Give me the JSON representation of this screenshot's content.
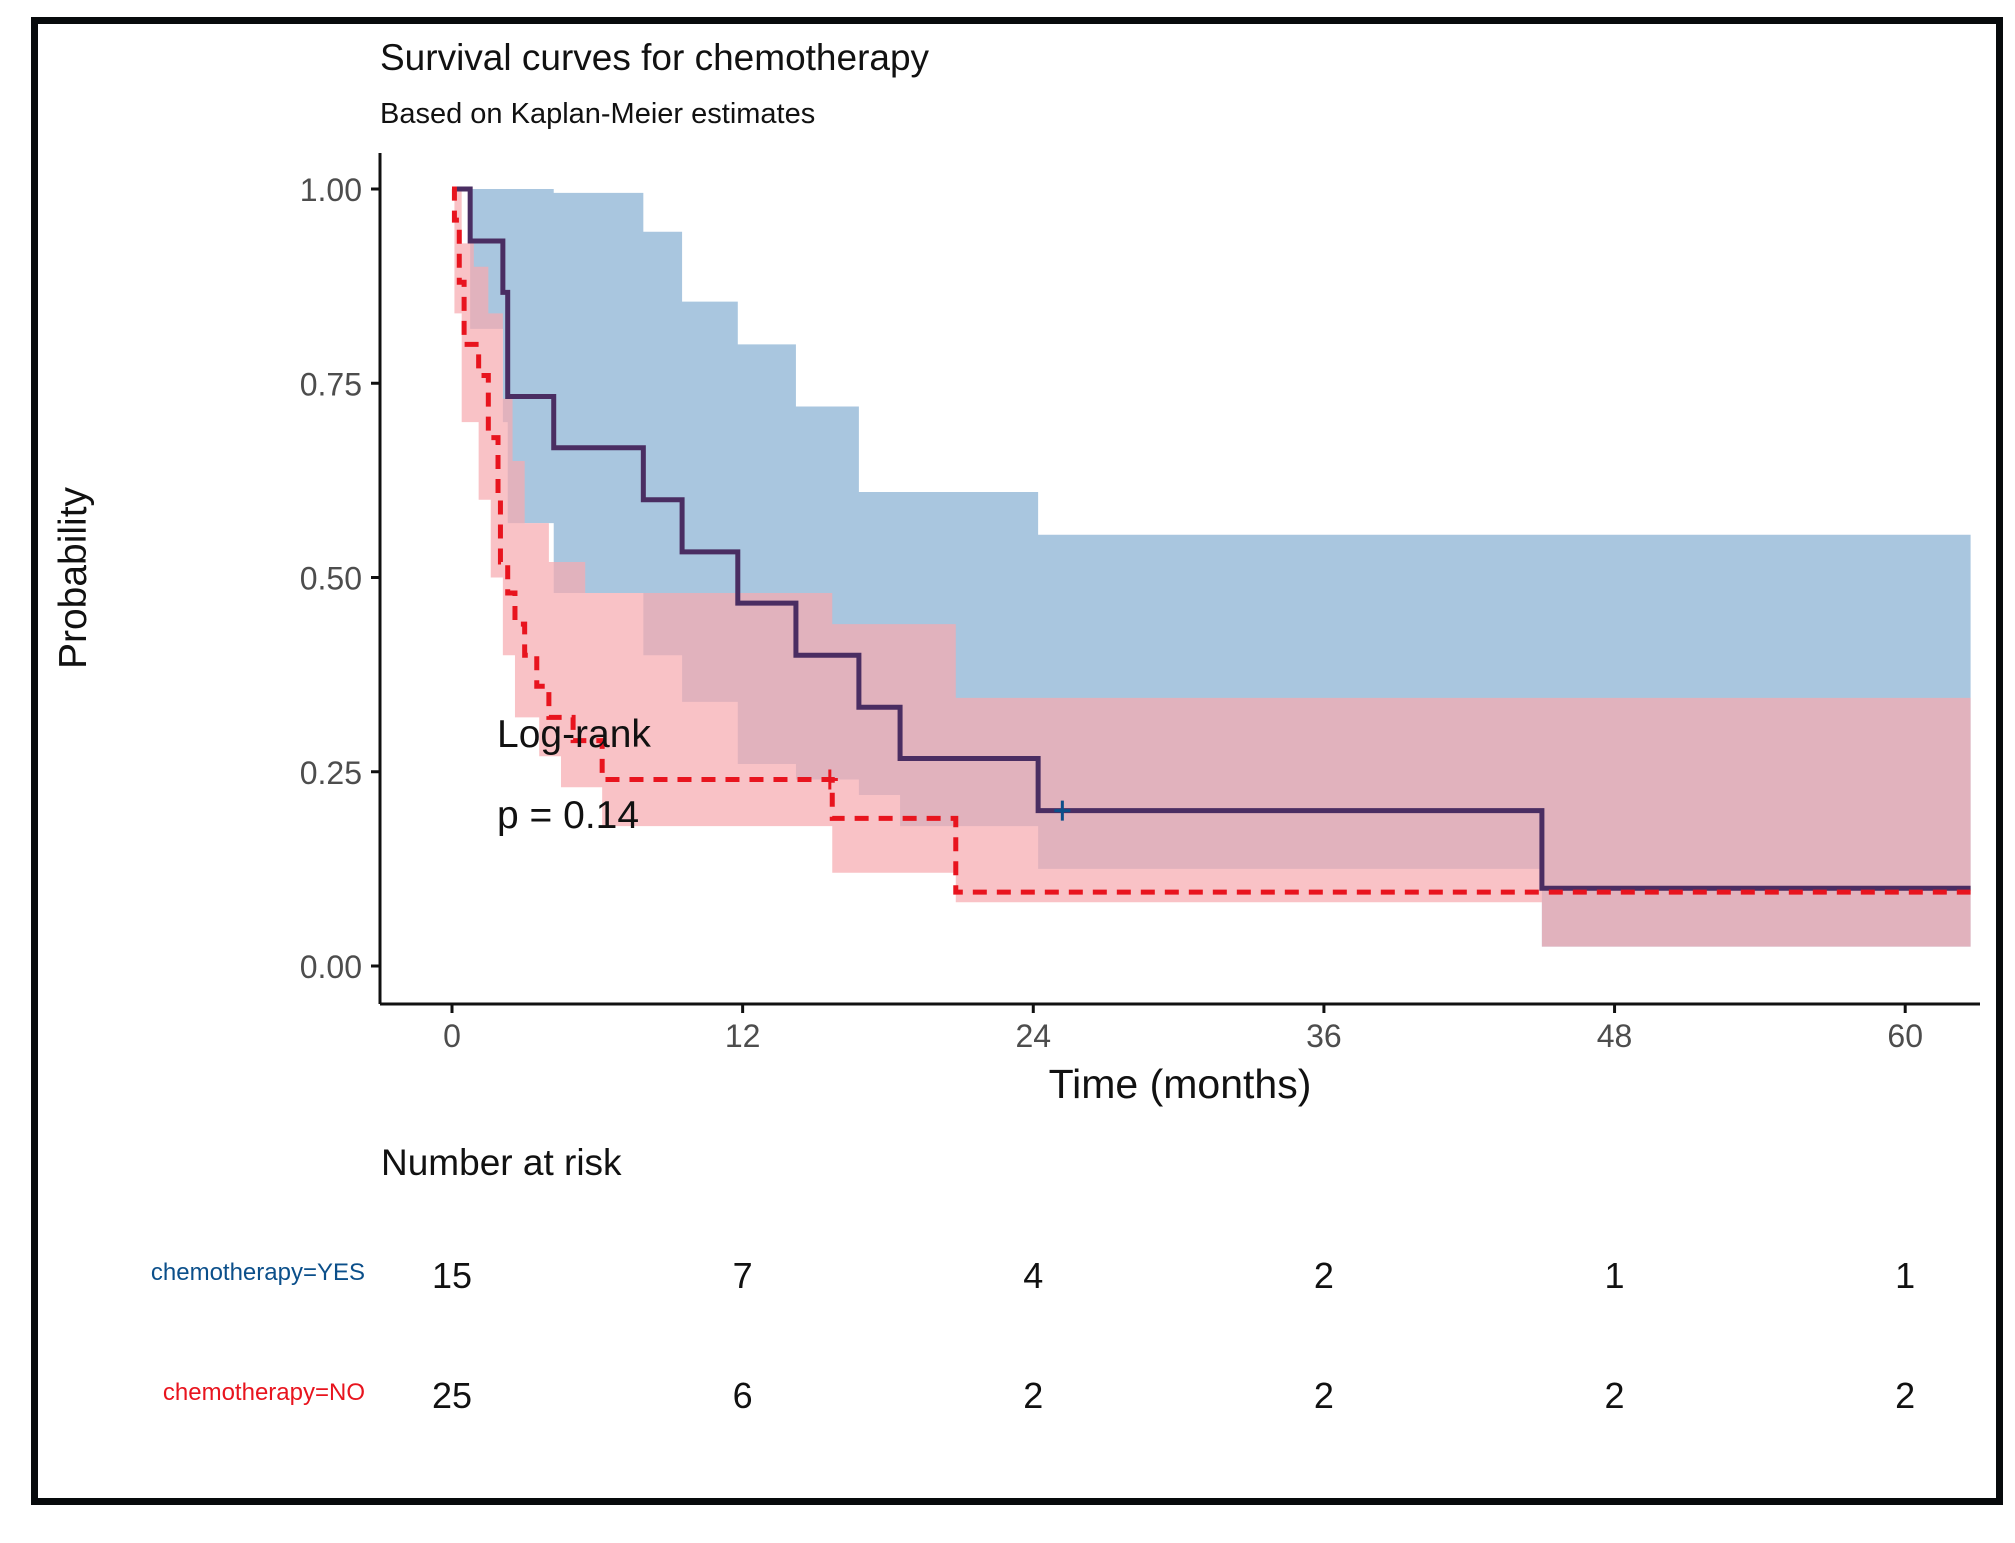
{
  "chart_data": {
    "type": "line",
    "subtype": "kaplan-meier",
    "title": "Survival curves for chemotherapy",
    "subtitle": "Based on Kaplan-Meier estimates",
    "xlabel": "Time (months)",
    "ylabel": "Probability",
    "xlim": [
      -4,
      63
    ],
    "ylim": [
      -0.05,
      1.05
    ],
    "x_ticks": [
      0,
      12,
      24,
      36,
      48,
      60
    ],
    "x_tick_labels": [
      "0",
      "12",
      "24",
      "36",
      "48",
      "60"
    ],
    "y_ticks": [
      0,
      0.25,
      0.5,
      0.75,
      1.0
    ],
    "y_tick_labels": [
      "0.00",
      "0.25",
      "0.50",
      "0.75",
      "1.00"
    ],
    "grid": false,
    "annotation": {
      "line1": "Log-rank",
      "line2": "p = 0.14"
    },
    "series": [
      {
        "name": "chemotherapy=YES",
        "color": "#0b4f8a",
        "ci_color": "#a9c6df",
        "linestyle": "solid",
        "steps": [
          [
            0,
            1.0
          ],
          [
            0.75,
            0.933
          ],
          [
            2.1,
            0.867
          ],
          [
            2.3,
            0.733
          ],
          [
            4.2,
            0.667
          ],
          [
            7.9,
            0.6
          ],
          [
            9.5,
            0.533
          ],
          [
            11.8,
            0.467
          ],
          [
            14.2,
            0.4
          ],
          [
            16.8,
            0.333
          ],
          [
            18.5,
            0.267
          ],
          [
            24.2,
            0.2
          ],
          [
            45.0,
            0.1
          ],
          [
            62.7,
            0.1
          ]
        ],
        "ci_upper": [
          [
            0,
            1.0
          ],
          [
            1.2,
            1.0
          ],
          [
            4.2,
            0.995
          ],
          [
            7.9,
            0.945
          ],
          [
            9.5,
            0.855
          ],
          [
            11.8,
            0.8
          ],
          [
            14.2,
            0.72
          ],
          [
            16.8,
            0.61
          ],
          [
            18.5,
            0.61
          ],
          [
            24.2,
            0.555
          ],
          [
            45.0,
            0.555
          ],
          [
            62.7,
            0.555
          ]
        ],
        "ci_lower": [
          [
            0,
            1.0
          ],
          [
            0.75,
            0.82
          ],
          [
            2.1,
            0.7
          ],
          [
            2.3,
            0.57
          ],
          [
            4.2,
            0.48
          ],
          [
            7.9,
            0.4
          ],
          [
            9.5,
            0.34
          ],
          [
            11.8,
            0.26
          ],
          [
            14.2,
            0.24
          ],
          [
            16.8,
            0.22
          ],
          [
            18.5,
            0.18
          ],
          [
            24.2,
            0.125
          ],
          [
            45.0,
            0.025
          ],
          [
            62.7,
            0.025
          ]
        ],
        "censor_points": [
          [
            25.2,
            0.2
          ]
        ],
        "at_risk": [
          15,
          7,
          4,
          2,
          1,
          1
        ]
      },
      {
        "name": "chemotherapy=NO",
        "color": "#e8141e",
        "ci_color": "#f7aab0",
        "linestyle": "dashed",
        "steps": [
          [
            0,
            1.0
          ],
          [
            0.1,
            0.96
          ],
          [
            0.3,
            0.88
          ],
          [
            0.5,
            0.8
          ],
          [
            1.1,
            0.76
          ],
          [
            1.5,
            0.68
          ],
          [
            1.9,
            0.6
          ],
          [
            2.0,
            0.52
          ],
          [
            2.3,
            0.48
          ],
          [
            2.6,
            0.44
          ],
          [
            3.0,
            0.4
          ],
          [
            3.5,
            0.36
          ],
          [
            4.0,
            0.32
          ],
          [
            5.0,
            0.29
          ],
          [
            6.2,
            0.24
          ],
          [
            15.7,
            0.19
          ],
          [
            20.8,
            0.095
          ],
          [
            62.7,
            0.095
          ]
        ],
        "ci_upper": [
          [
            0,
            1.0
          ],
          [
            0.4,
            0.93
          ],
          [
            0.9,
            0.9
          ],
          [
            1.5,
            0.84
          ],
          [
            2.1,
            0.73
          ],
          [
            2.5,
            0.65
          ],
          [
            3.0,
            0.57
          ],
          [
            4.0,
            0.52
          ],
          [
            5.5,
            0.48
          ],
          [
            7.9,
            0.48
          ],
          [
            11.5,
            0.48
          ],
          [
            15.7,
            0.44
          ],
          [
            20.8,
            0.345
          ],
          [
            62.7,
            0.345
          ]
        ],
        "ci_lower": [
          [
            0,
            1.0
          ],
          [
            0.1,
            0.84
          ],
          [
            0.4,
            0.7
          ],
          [
            1.1,
            0.6
          ],
          [
            1.6,
            0.5
          ],
          [
            2.1,
            0.4
          ],
          [
            2.6,
            0.32
          ],
          [
            3.6,
            0.27
          ],
          [
            4.5,
            0.23
          ],
          [
            6.2,
            0.18
          ],
          [
            15.7,
            0.12
          ],
          [
            20.8,
            0.082
          ],
          [
            45.0,
            0.025
          ],
          [
            62.7,
            0.025
          ]
        ],
        "censor_points": [
          [
            15.6,
            0.24
          ]
        ],
        "at_risk": [
          25,
          6,
          2,
          2,
          2,
          2
        ]
      }
    ],
    "risk_table": {
      "title": "Number at risk",
      "times": [
        0,
        12,
        24,
        36,
        48,
        60
      ],
      "rows": [
        {
          "label": "chemotherapy=YES",
          "color": "#0b4f8a",
          "values": [
            "15",
            "7",
            "4",
            "2",
            "1",
            "1"
          ]
        },
        {
          "label": "chemotherapy=NO",
          "color": "#e8141e",
          "values": [
            "25",
            "6",
            "2",
            "2",
            "2",
            "2"
          ]
        }
      ]
    }
  }
}
